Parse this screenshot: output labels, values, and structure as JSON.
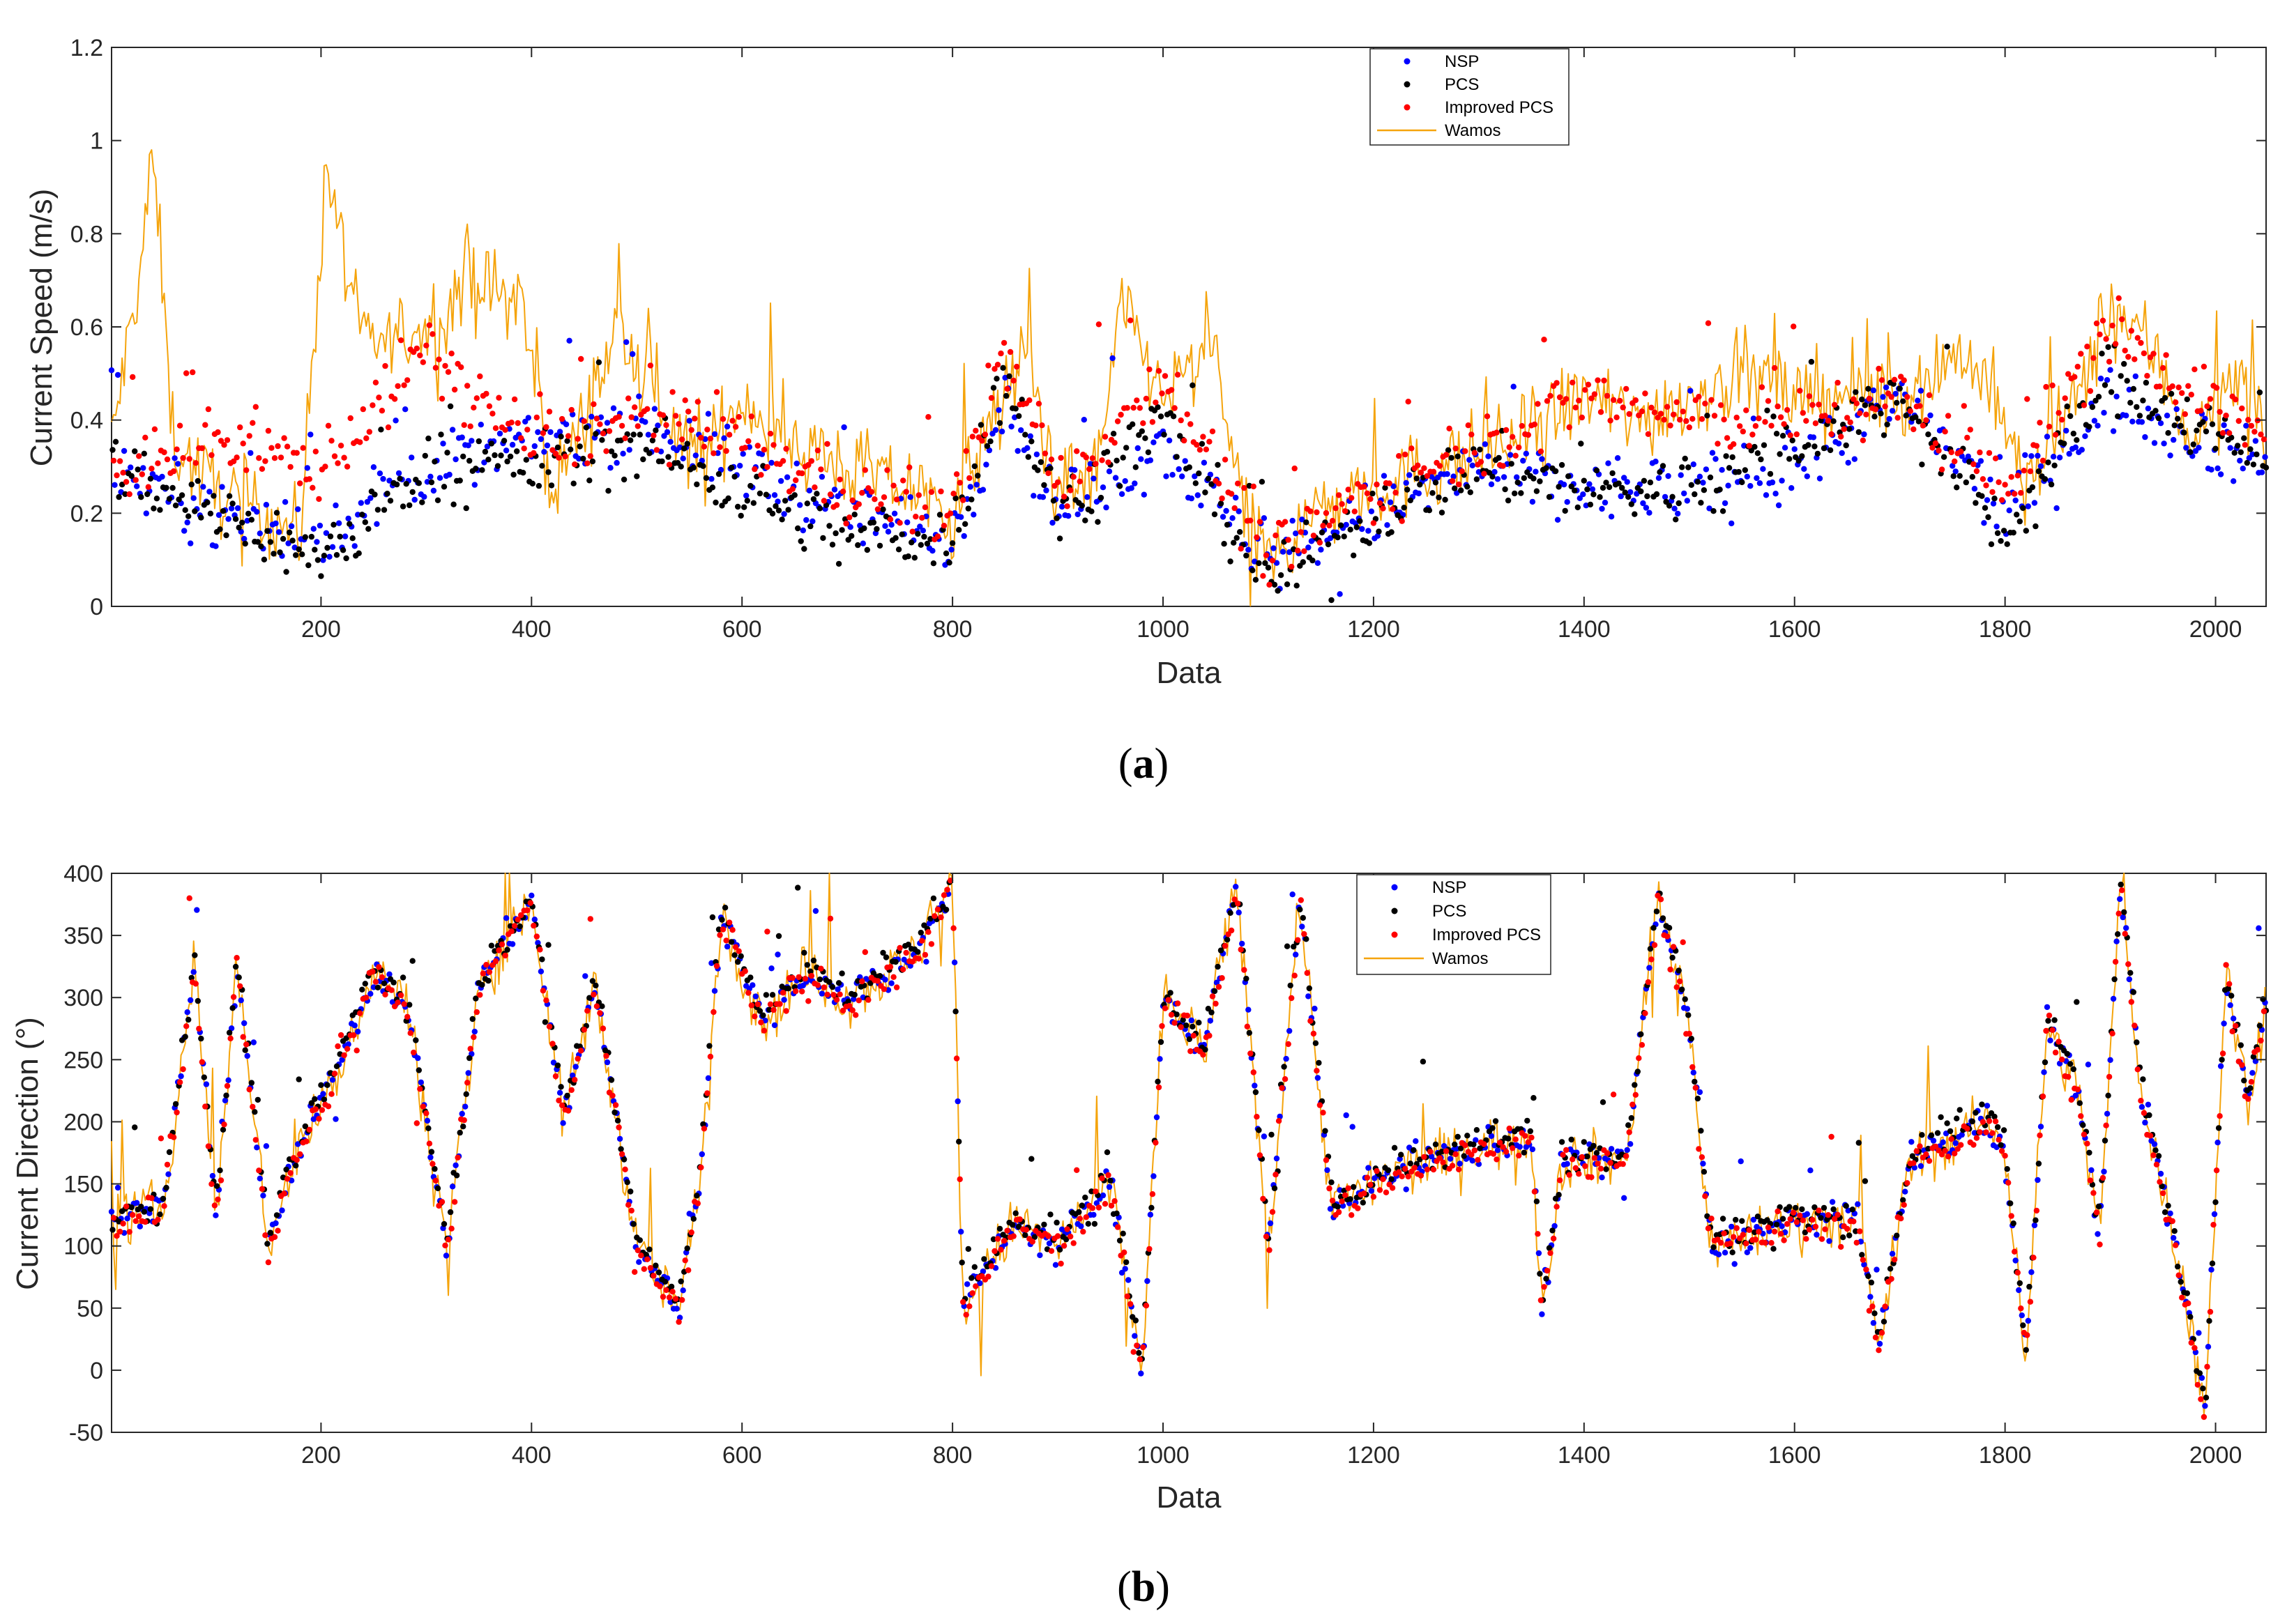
{
  "figure": {
    "panels": [
      {
        "id": "a",
        "label": "(a)",
        "label_letter": "a",
        "chart_ref": 0
      },
      {
        "id": "b",
        "label": "(b)",
        "label_letter": "b",
        "chart_ref": 1
      }
    ]
  },
  "chart_data": [
    {
      "type": "scatter",
      "title": "",
      "xlabel": "Data",
      "ylabel": "Current Speed (m/s)",
      "xlim": [
        1,
        2048
      ],
      "ylim": [
        0,
        1.2
      ],
      "xticks": [
        200,
        400,
        600,
        800,
        1000,
        1200,
        1400,
        1600,
        1800,
        2000
      ],
      "yticks": [
        0,
        0.2,
        0.4,
        0.6,
        0.8,
        1,
        1.2
      ],
      "ytick_labels": [
        "0",
        "0.2",
        "0.4",
        "0.6",
        "0.8",
        "1",
        "1.2"
      ],
      "grid": false,
      "legend_position": "top-center",
      "legend": [
        "NSP",
        "PCS",
        "Improved PCS",
        "Wamos"
      ],
      "colors": {
        "NSP": "#0000ff",
        "PCS": "#000000",
        "Improved PCS": "#ff0000",
        "Wamos": "#f5a40c"
      },
      "wamos_trend": [
        [
          1,
          0.35
        ],
        [
          30,
          0.75
        ],
        [
          40,
          0.98
        ],
        [
          60,
          0.35
        ],
        [
          100,
          0.25
        ],
        [
          150,
          0.2
        ],
        [
          180,
          0.15
        ],
        [
          205,
          0.95
        ],
        [
          240,
          0.55
        ],
        [
          300,
          0.6
        ],
        [
          340,
          0.7
        ],
        [
          390,
          0.65
        ],
        [
          420,
          0.25
        ],
        [
          460,
          0.45
        ],
        [
          480,
          0.6
        ],
        [
          520,
          0.45
        ],
        [
          560,
          0.3
        ],
        [
          600,
          0.45
        ],
        [
          650,
          0.35
        ],
        [
          700,
          0.3
        ],
        [
          760,
          0.25
        ],
        [
          800,
          0.2
        ],
        [
          820,
          0.3
        ],
        [
          870,
          0.55
        ],
        [
          900,
          0.25
        ],
        [
          940,
          0.3
        ],
        [
          960,
          0.65
        ],
        [
          1000,
          0.45
        ],
        [
          1050,
          0.55
        ],
        [
          1080,
          0.15
        ],
        [
          1110,
          0.1
        ],
        [
          1140,
          0.2
        ],
        [
          1200,
          0.25
        ],
        [
          1260,
          0.3
        ],
        [
          1330,
          0.35
        ],
        [
          1400,
          0.45
        ],
        [
          1450,
          0.4
        ],
        [
          1500,
          0.45
        ],
        [
          1550,
          0.5
        ],
        [
          1600,
          0.45
        ],
        [
          1650,
          0.45
        ],
        [
          1700,
          0.45
        ],
        [
          1760,
          0.55
        ],
        [
          1790,
          0.45
        ],
        [
          1820,
          0.25
        ],
        [
          1870,
          0.45
        ],
        [
          1900,
          0.65
        ],
        [
          1940,
          0.55
        ],
        [
          1980,
          0.35
        ],
        [
          2020,
          0.5
        ],
        [
          2048,
          0.35
        ]
      ],
      "series_trend": {
        "NSP": [
          [
            1,
            0.3
          ],
          [
            100,
            0.2
          ],
          [
            200,
            0.15
          ],
          [
            300,
            0.3
          ],
          [
            400,
            0.35
          ],
          [
            500,
            0.4
          ],
          [
            600,
            0.3
          ],
          [
            700,
            0.2
          ],
          [
            800,
            0.15
          ],
          [
            850,
            0.45
          ],
          [
            900,
            0.2
          ],
          [
            1000,
            0.35
          ],
          [
            1100,
            0.1
          ],
          [
            1200,
            0.2
          ],
          [
            1300,
            0.3
          ],
          [
            1400,
            0.25
          ],
          [
            1500,
            0.25
          ],
          [
            1600,
            0.3
          ],
          [
            1700,
            0.45
          ],
          [
            1800,
            0.2
          ],
          [
            1900,
            0.45
          ],
          [
            2048,
            0.3
          ]
        ],
        "PCS": [
          [
            1,
            0.3
          ],
          [
            100,
            0.2
          ],
          [
            200,
            0.1
          ],
          [
            300,
            0.3
          ],
          [
            400,
            0.3
          ],
          [
            500,
            0.35
          ],
          [
            600,
            0.25
          ],
          [
            700,
            0.15
          ],
          [
            800,
            0.15
          ],
          [
            850,
            0.5
          ],
          [
            900,
            0.2
          ],
          [
            1000,
            0.4
          ],
          [
            1100,
            0.05
          ],
          [
            1200,
            0.2
          ],
          [
            1300,
            0.3
          ],
          [
            1400,
            0.25
          ],
          [
            1500,
            0.25
          ],
          [
            1600,
            0.35
          ],
          [
            1700,
            0.45
          ],
          [
            1800,
            0.15
          ],
          [
            1900,
            0.5
          ],
          [
            2048,
            0.3
          ]
        ],
        "Improved PCS": [
          [
            1,
            0.3
          ],
          [
            100,
            0.35
          ],
          [
            200,
            0.3
          ],
          [
            300,
            0.55
          ],
          [
            400,
            0.35
          ],
          [
            500,
            0.4
          ],
          [
            600,
            0.35
          ],
          [
            700,
            0.25
          ],
          [
            800,
            0.2
          ],
          [
            850,
            0.55
          ],
          [
            900,
            0.25
          ],
          [
            1000,
            0.5
          ],
          [
            1100,
            0.1
          ],
          [
            1200,
            0.25
          ],
          [
            1300,
            0.35
          ],
          [
            1400,
            0.45
          ],
          [
            1500,
            0.4
          ],
          [
            1600,
            0.4
          ],
          [
            1700,
            0.45
          ],
          [
            1800,
            0.25
          ],
          [
            1900,
            0.6
          ],
          [
            2048,
            0.35
          ]
        ]
      }
    },
    {
      "type": "scatter",
      "title": "",
      "xlabel": "Data",
      "ylabel": "Current Direction (°)",
      "xlim": [
        1,
        2048
      ],
      "ylim": [
        -50,
        400
      ],
      "xticks": [
        200,
        400,
        600,
        800,
        1000,
        1200,
        1400,
        1600,
        1800,
        2000
      ],
      "yticks": [
        -50,
        0,
        50,
        100,
        150,
        200,
        250,
        300,
        350,
        400
      ],
      "ytick_labels": [
        "-50",
        "0",
        "50",
        "100",
        "150",
        "200",
        "250",
        "300",
        "350",
        "400"
      ],
      "grid": false,
      "legend_position": "top-center",
      "legend": [
        "NSP",
        "PCS",
        "Improved PCS",
        "Wamos"
      ],
      "colors": {
        "NSP": "#0000ff",
        "PCS": "#000000",
        "Improved PCS": "#ff0000",
        "Wamos": "#f5a40c"
      },
      "wamos_trend": [
        [
          1,
          120
        ],
        [
          50,
          130
        ],
        [
          80,
          330
        ],
        [
          100,
          120
        ],
        [
          120,
          330
        ],
        [
          150,
          100
        ],
        [
          180,
          180
        ],
        [
          220,
          250
        ],
        [
          250,
          320
        ],
        [
          280,
          300
        ],
        [
          320,
          100
        ],
        [
          350,
          310
        ],
        [
          400,
          380
        ],
        [
          430,
          200
        ],
        [
          460,
          310
        ],
        [
          500,
          100
        ],
        [
          540,
          50
        ],
        [
          560,
          150
        ],
        [
          580,
          370
        ],
        [
          620,
          280
        ],
        [
          660,
          320
        ],
        [
          700,
          300
        ],
        [
          760,
          330
        ],
        [
          800,
          390
        ],
        [
          810,
          50
        ],
        [
          860,
          120
        ],
        [
          900,
          100
        ],
        [
          950,
          150
        ],
        [
          980,
          0
        ],
        [
          1000,
          300
        ],
        [
          1040,
          260
        ],
        [
          1070,
          390
        ],
        [
          1100,
          100
        ],
        [
          1130,
          380
        ],
        [
          1160,
          130
        ],
        [
          1220,
          160
        ],
        [
          1300,
          180
        ],
        [
          1350,
          190
        ],
        [
          1360,
          50
        ],
        [
          1380,
          170
        ],
        [
          1440,
          170
        ],
        [
          1470,
          380
        ],
        [
          1500,
          280
        ],
        [
          1520,
          100
        ],
        [
          1600,
          120
        ],
        [
          1660,
          120
        ],
        [
          1680,
          20
        ],
        [
          1710,
          170
        ],
        [
          1780,
          200
        ],
        [
          1800,
          180
        ],
        [
          1820,
          10
        ],
        [
          1840,
          280
        ],
        [
          1870,
          220
        ],
        [
          1890,
          110
        ],
        [
          1910,
          390
        ],
        [
          1930,
          220
        ],
        [
          1960,
          110
        ],
        [
          1990,
          -30
        ],
        [
          2010,
          320
        ],
        [
          2030,
          220
        ],
        [
          2048,
          300
        ]
      ]
    }
  ]
}
